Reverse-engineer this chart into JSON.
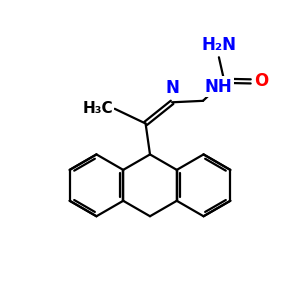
{
  "background_color": "#ffffff",
  "bond_color": "#000000",
  "bond_width": 1.6,
  "atom_colors": {
    "N": "#0000ff",
    "O": "#ff0000",
    "C": "#000000"
  },
  "font_size_atoms": 12,
  "xlim": [
    0,
    10
  ],
  "ylim": [
    0,
    10
  ]
}
